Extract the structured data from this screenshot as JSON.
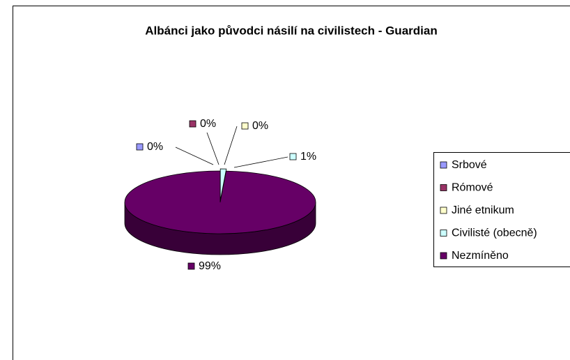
{
  "chart_data": {
    "type": "pie",
    "title": "Albánci jako původci násilí na civilistech - Guardian",
    "categories": [
      "Srbové",
      "Rómové",
      "Jiné etnikum",
      "Civilisté (obecně)",
      "Nezmíněno"
    ],
    "values": [
      0,
      0,
      0,
      1,
      99
    ],
    "value_labels": [
      "0%",
      "0%",
      "0%",
      "1%",
      "99%"
    ],
    "colors": [
      "#9999FF",
      "#993366",
      "#FFFFCC",
      "#CCFFFF",
      "#660066"
    ],
    "legend": "right"
  }
}
